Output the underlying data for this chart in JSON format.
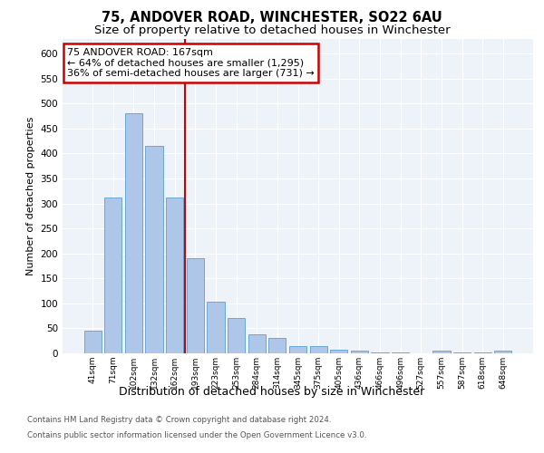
{
  "title": "75, ANDOVER ROAD, WINCHESTER, SO22 6AU",
  "subtitle": "Size of property relative to detached houses in Winchester",
  "xlabel": "Distribution of detached houses by size in Winchester",
  "ylabel": "Number of detached properties",
  "categories": [
    "41sqm",
    "71sqm",
    "102sqm",
    "132sqm",
    "162sqm",
    "193sqm",
    "223sqm",
    "253sqm",
    "284sqm",
    "314sqm",
    "345sqm",
    "375sqm",
    "405sqm",
    "436sqm",
    "466sqm",
    "496sqm",
    "527sqm",
    "557sqm",
    "587sqm",
    "618sqm",
    "648sqm"
  ],
  "values": [
    46,
    312,
    480,
    415,
    312,
    190,
    104,
    70,
    38,
    31,
    14,
    14,
    8,
    5,
    2,
    1,
    0,
    5,
    1,
    1,
    5
  ],
  "bar_color": "#aec6e8",
  "bar_edge_color": "#5a9fd4",
  "red_line_index": 4,
  "annotation_line1": "75 ANDOVER ROAD: 167sqm",
  "annotation_line2": "← 64% of detached houses are smaller (1,295)",
  "annotation_line3": "36% of semi-detached houses are larger (731) →",
  "annotation_box_color": "#ffffff",
  "annotation_box_edge_color": "#cc0000",
  "red_line_color": "#cc0000",
  "ylim": [
    0,
    630
  ],
  "yticks": [
    0,
    50,
    100,
    150,
    200,
    250,
    300,
    350,
    400,
    450,
    500,
    550,
    600
  ],
  "footer_line1": "Contains HM Land Registry data © Crown copyright and database right 2024.",
  "footer_line2": "Contains public sector information licensed under the Open Government Licence v3.0.",
  "title_fontsize": 10.5,
  "subtitle_fontsize": 9.5,
  "annotation_fontsize": 8,
  "ylabel_fontsize": 8,
  "xlabel_fontsize": 9,
  "bar_width": 0.85,
  "background_color": "#eef2f9"
}
